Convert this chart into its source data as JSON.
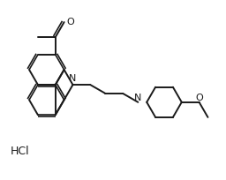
{
  "background_color": "#ffffff",
  "line_color": "#1a1a1a",
  "text_color": "#1a1a1a",
  "hcl_label": "HCl",
  "N_label": "N",
  "O_label": "O"
}
